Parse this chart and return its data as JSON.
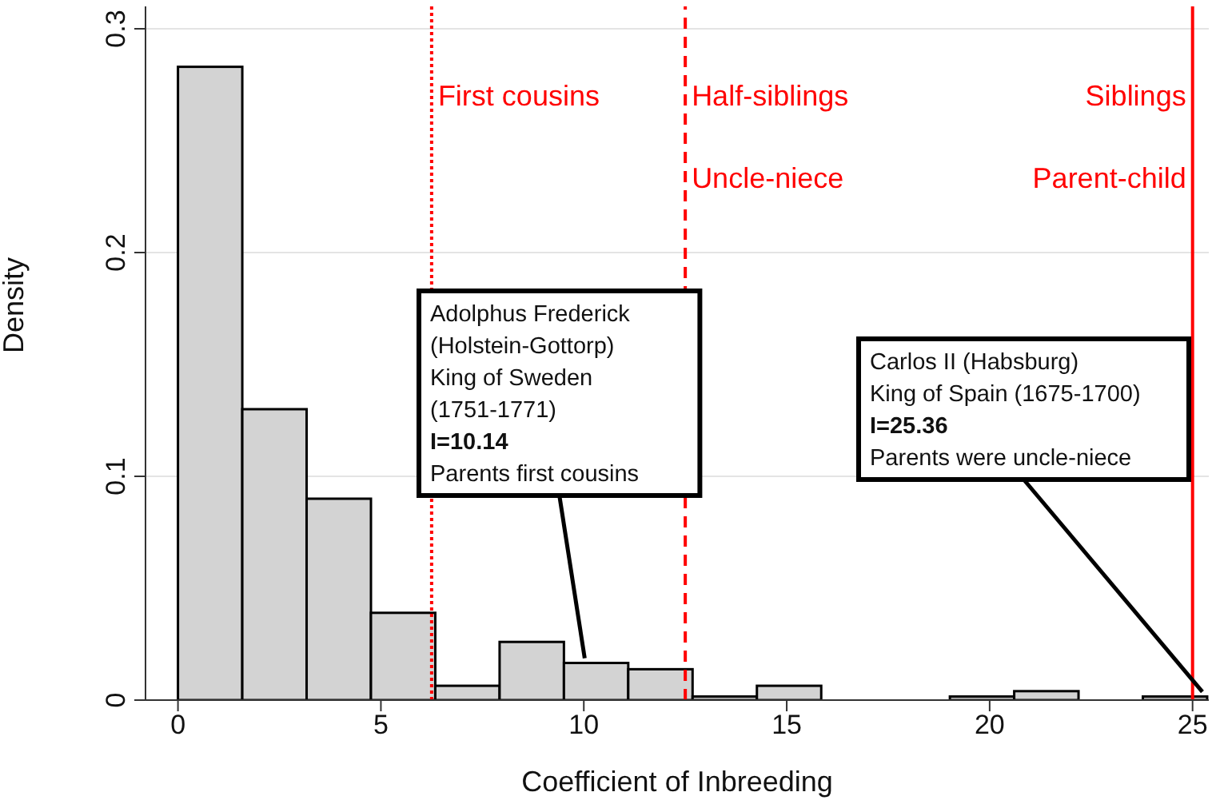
{
  "chart_data": {
    "type": "histogram",
    "xlabel": "Coefficient of Inbreeding",
    "ylabel": "Density",
    "bins": [
      0,
      1.585,
      3.17,
      4.755,
      6.34,
      7.925,
      9.51,
      11.095,
      12.68,
      14.265,
      15.85,
      17.435,
      19.02,
      20.605,
      22.19,
      23.775,
      25.36
    ],
    "values": [
      0.283,
      0.13,
      0.09,
      0.039,
      0.0064,
      0.026,
      0.0166,
      0.0138,
      0.0016,
      0.0064,
      0,
      0,
      0.0016,
      0.004,
      0,
      0.0016
    ],
    "color": "#d3d3d3",
    "xlim": [
      -0.8,
      25.4
    ],
    "xticks": [
      0,
      5,
      10,
      15,
      20,
      25
    ],
    "ylim": [
      0,
      0.31
    ],
    "yticks": [
      0,
      0.1,
      0.2,
      0.3
    ],
    "grid": "y",
    "ref_lines": [
      {
        "axis": "x",
        "value": 6.25,
        "label": "First cousins",
        "color": "#ff0000",
        "line_style": "dotted"
      },
      {
        "axis": "x",
        "value": 12.5,
        "label": "Half-siblings",
        "color": "#ff0000",
        "line_style": "dashed"
      },
      {
        "axis": "x",
        "value": 25,
        "label": "Siblings",
        "color": "#ff0000",
        "line_style": "solid"
      }
    ],
    "annotations": [
      {
        "text": "Uncle-niece",
        "x": 12.5,
        "y": 0.229
      },
      {
        "text": "Parent-child",
        "x": 25,
        "y": 0.229
      },
      {
        "text": "Adolphus Frederick\n(Holstein-Gottorp)\nKing of Sweden\n(1751-1771)\nI=10.14\nParents first cousins",
        "x": 10.14,
        "y": 0.0166
      },
      {
        "text": "Carlos II (Habsburg)\nKing of Spain (1675-1700)\nI=25.36\nParents were uncle-niece",
        "x": 25.36,
        "y": 0.0016
      }
    ]
  }
}
